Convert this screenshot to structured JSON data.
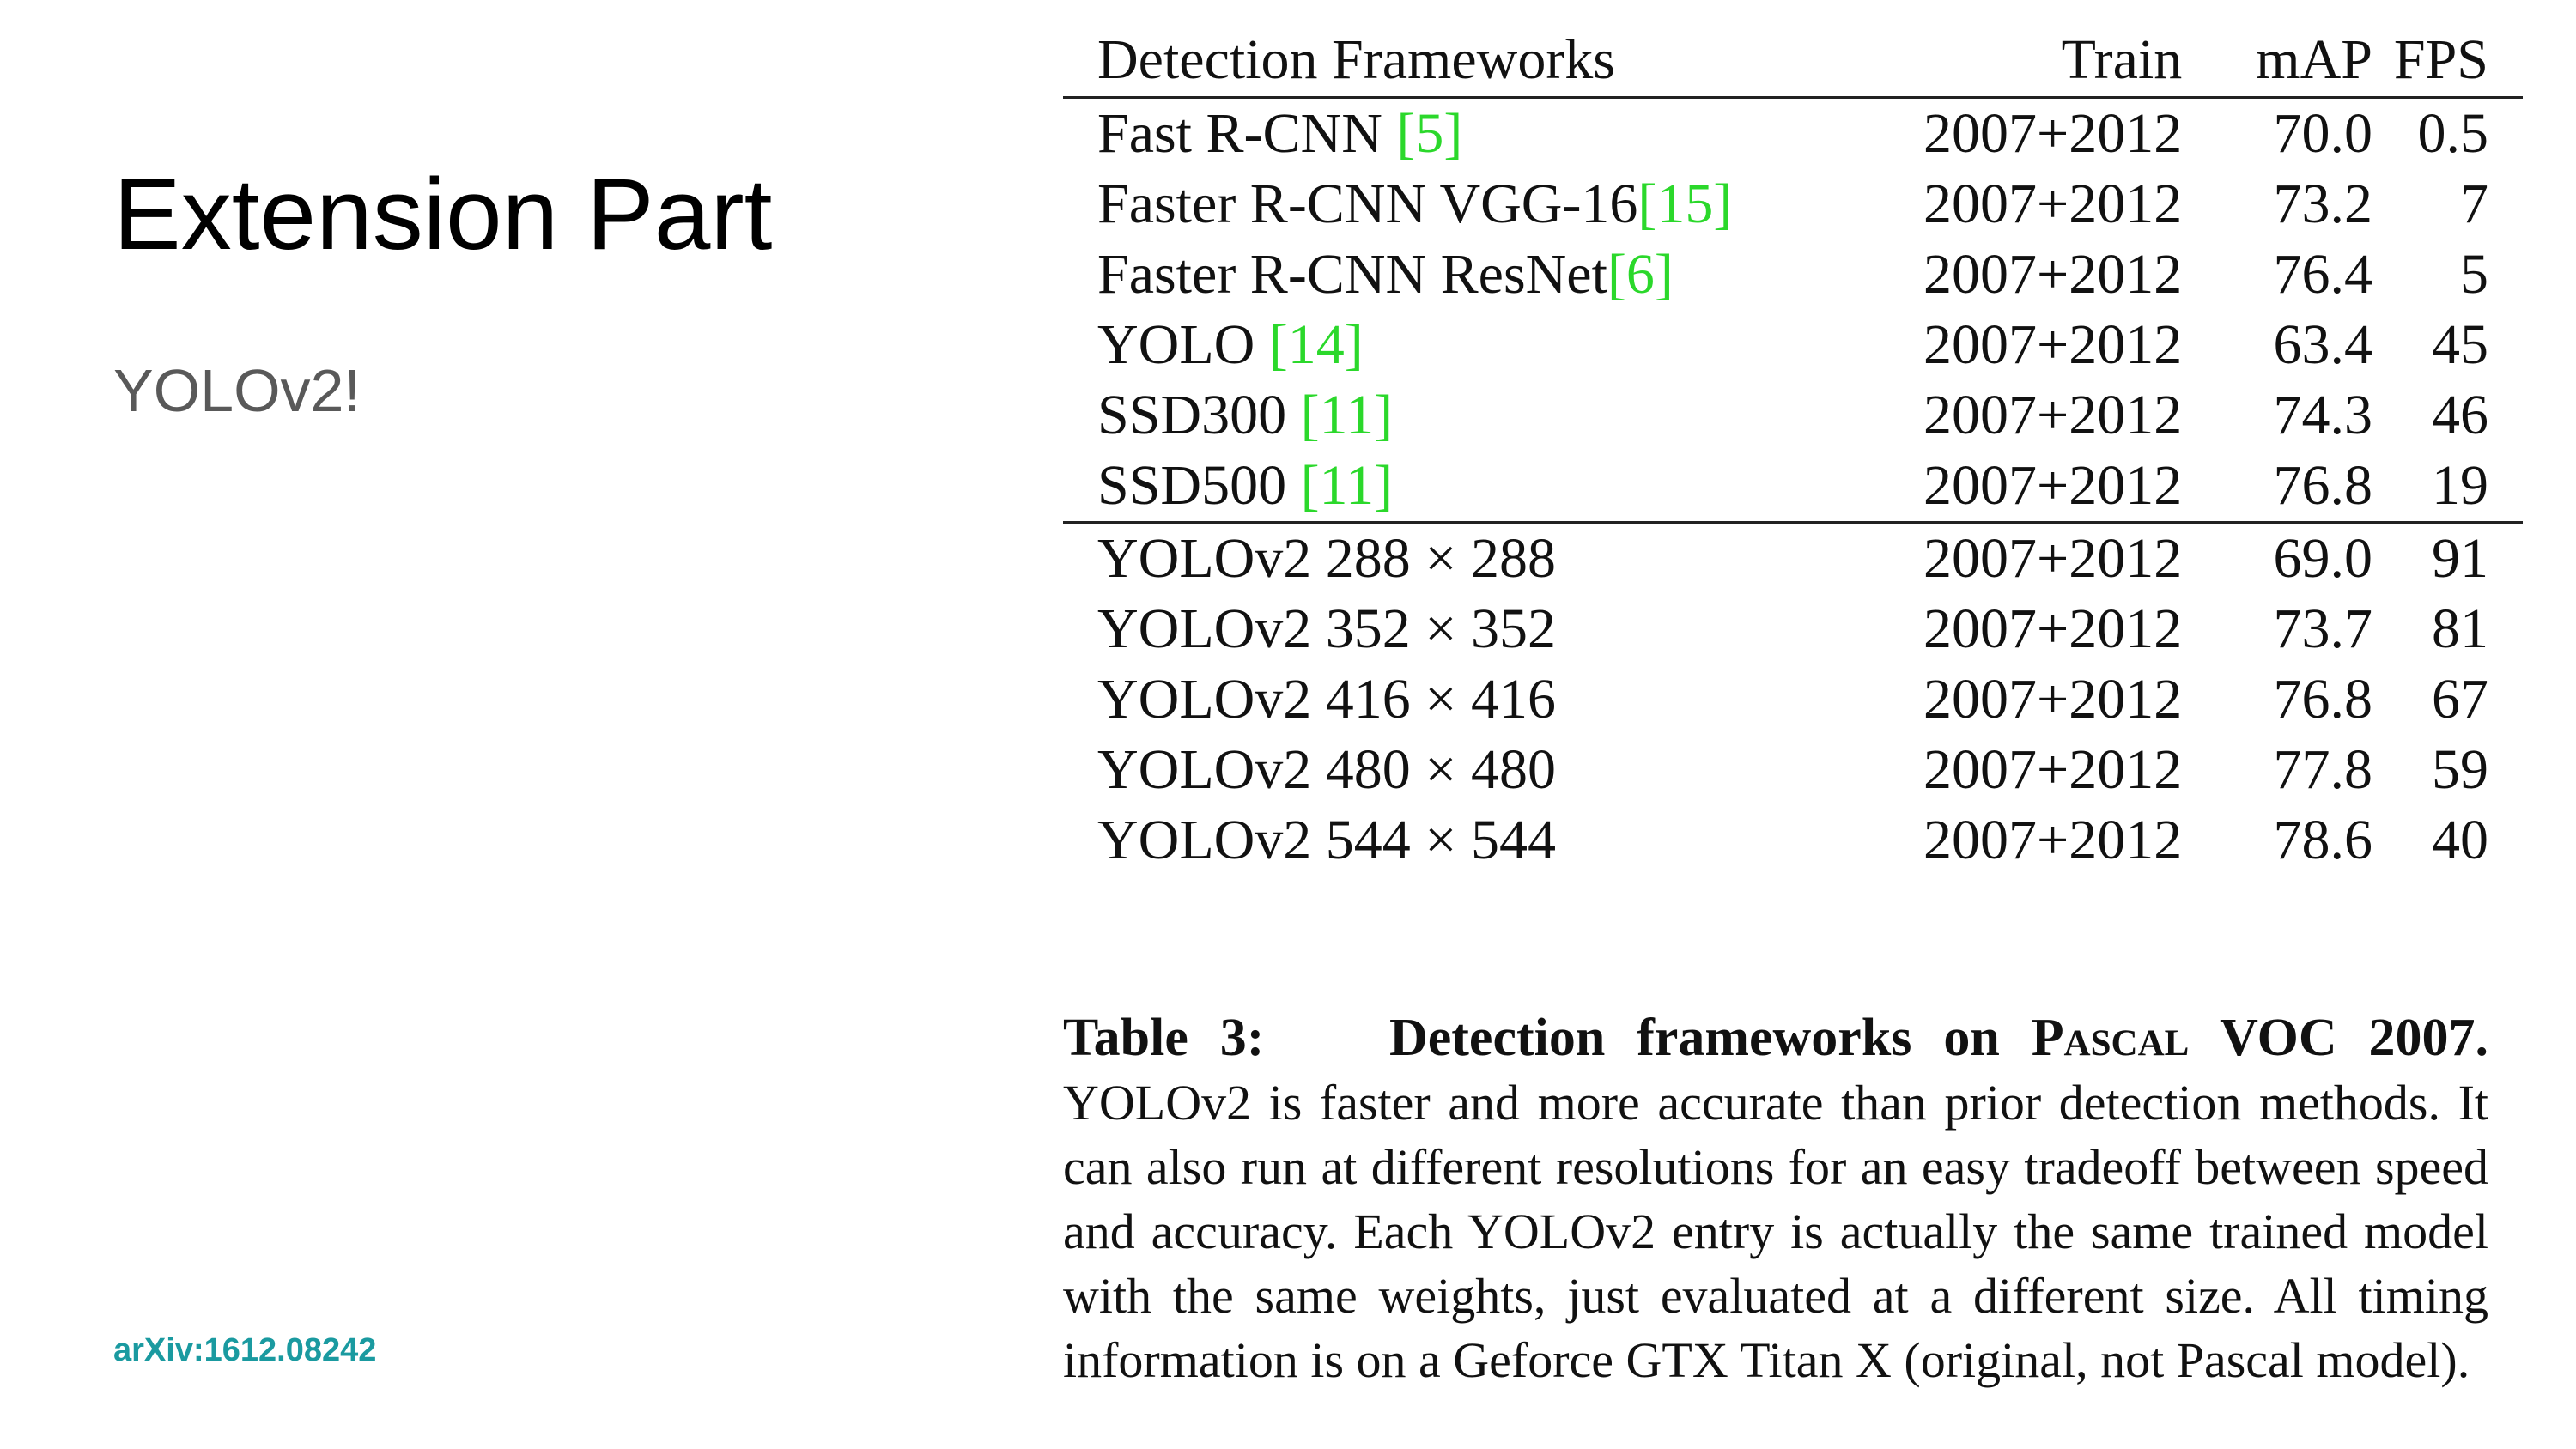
{
  "slide": {
    "title": "Extension Part",
    "subtitle": "YOLOv2!",
    "citation": "arXiv:1612.08242"
  },
  "table": {
    "headers": {
      "framework": "Detection Frameworks",
      "train": "Train",
      "map": "mAP",
      "fps": "FPS"
    },
    "prior_rows": [
      {
        "name": "Fast R-CNN ",
        "ref": "[5]",
        "train": "2007+2012",
        "map": "70.0",
        "fps": "0.5"
      },
      {
        "name": "Faster R-CNN VGG-16",
        "ref": "[15]",
        "train": "2007+2012",
        "map": "73.2",
        "fps": "7"
      },
      {
        "name": "Faster R-CNN ResNet",
        "ref": "[6]",
        "train": "2007+2012",
        "map": "76.4",
        "fps": "5"
      },
      {
        "name": "YOLO ",
        "ref": "[14]",
        "train": "2007+2012",
        "map": "63.4",
        "fps": "45"
      },
      {
        "name": "SSD300 ",
        "ref": "[11]",
        "train": "2007+2012",
        "map": "74.3",
        "fps": "46"
      },
      {
        "name": "SSD500 ",
        "ref": "[11]",
        "train": "2007+2012",
        "map": "76.8",
        "fps": "19"
      }
    ],
    "yolo_rows": [
      {
        "name": "YOLOv2 288 × 288",
        "train": "2007+2012",
        "map": "69.0",
        "fps": "91"
      },
      {
        "name": "YOLOv2 352 × 352",
        "train": "2007+2012",
        "map": "73.7",
        "fps": "81"
      },
      {
        "name": "YOLOv2 416 × 416",
        "train": "2007+2012",
        "map": "76.8",
        "fps": "67"
      },
      {
        "name": "YOLOv2 480 × 480",
        "train": "2007+2012",
        "map": "77.8",
        "fps": "59"
      },
      {
        "name": "YOLOv2 544 × 544",
        "train": "2007+2012",
        "map": "78.6",
        "fps": "40"
      }
    ],
    "ref_color": "#2bd82b"
  },
  "caption": {
    "label": "Table 3:",
    "heading_pre": "Detection frameworks on ",
    "heading_sc": "Pascal",
    "heading_post": " VOC 2007.",
    "body": "YOLOv2 is faster and more accurate than prior detection methods. It can also run at different resolutions for an easy tradeoff between speed and accuracy. Each YOLOv2 entry is actually the same trained model with the same weights, just evaluated at a different size. All timing information is on a Geforce GTX Titan X (original, not Pascal model)."
  },
  "colors": {
    "title": "#000000",
    "subtitle": "#595959",
    "citation": "#1a9aa0"
  }
}
